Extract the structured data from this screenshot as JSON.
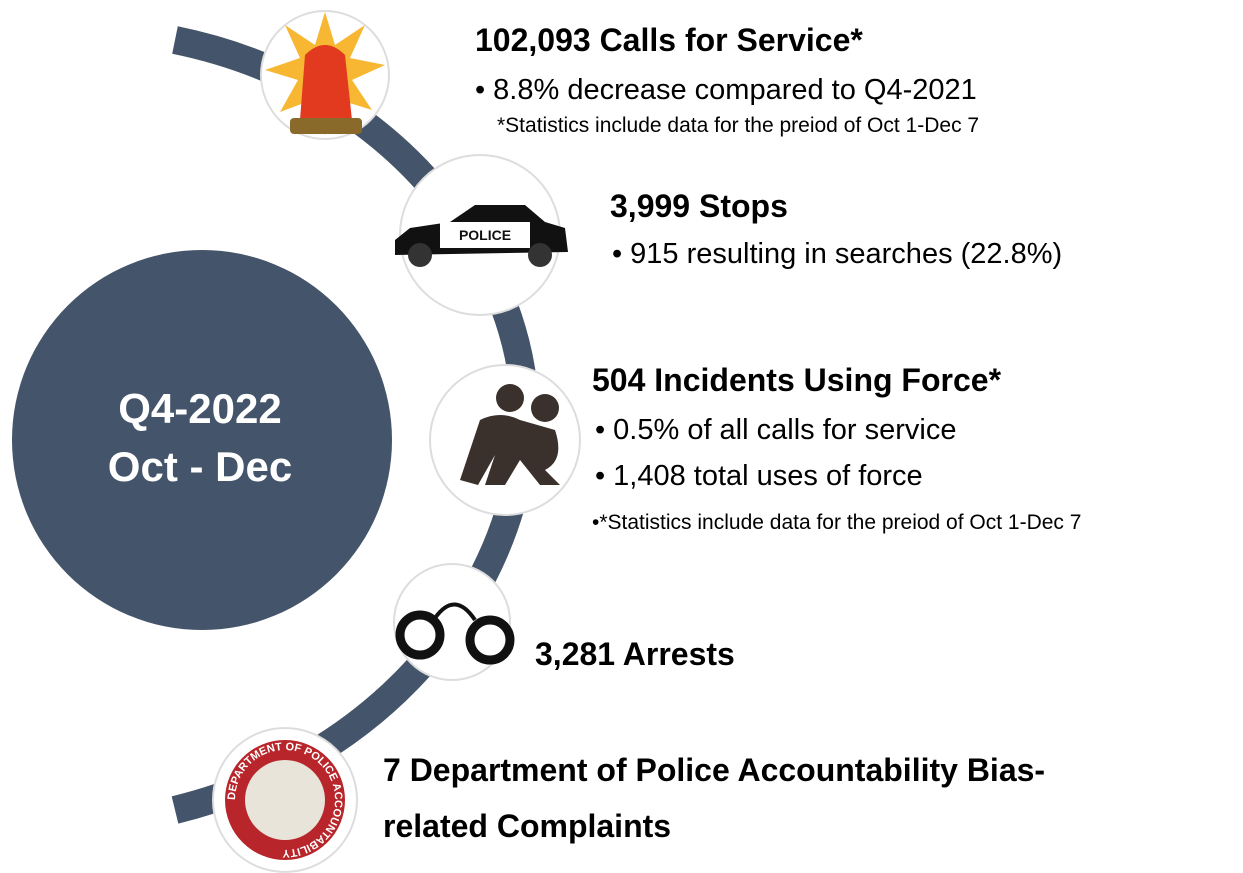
{
  "center": {
    "lines": [
      "Q4-2022",
      "Oct - Dec"
    ]
  },
  "items": [
    {
      "title": "102,093 Calls for Service*",
      "bullets": [
        "8.8% decrease compared to Q4-2021"
      ],
      "note": "*Statistics include data for the preiod of Oct 1-Dec 7"
    },
    {
      "title": "3,999 Stops",
      "bullets": [
        "915 resulting in searches (22.8%)"
      ]
    },
    {
      "title": "504 Incidents Using Force*",
      "bullets": [
        "0.5% of all calls for service",
        "1,408 total uses of force"
      ],
      "note": "*Statistics include data for the preiod of Oct 1-Dec 7"
    },
    {
      "title": "3,281 Arrests"
    },
    {
      "title": "7 Department of Police Accountability Bias-related Complaints"
    }
  ],
  "icons": {
    "car_label": "POLICE",
    "seal_text": "DEPARTMENT OF POLICE ACCOUNTABILITY"
  }
}
